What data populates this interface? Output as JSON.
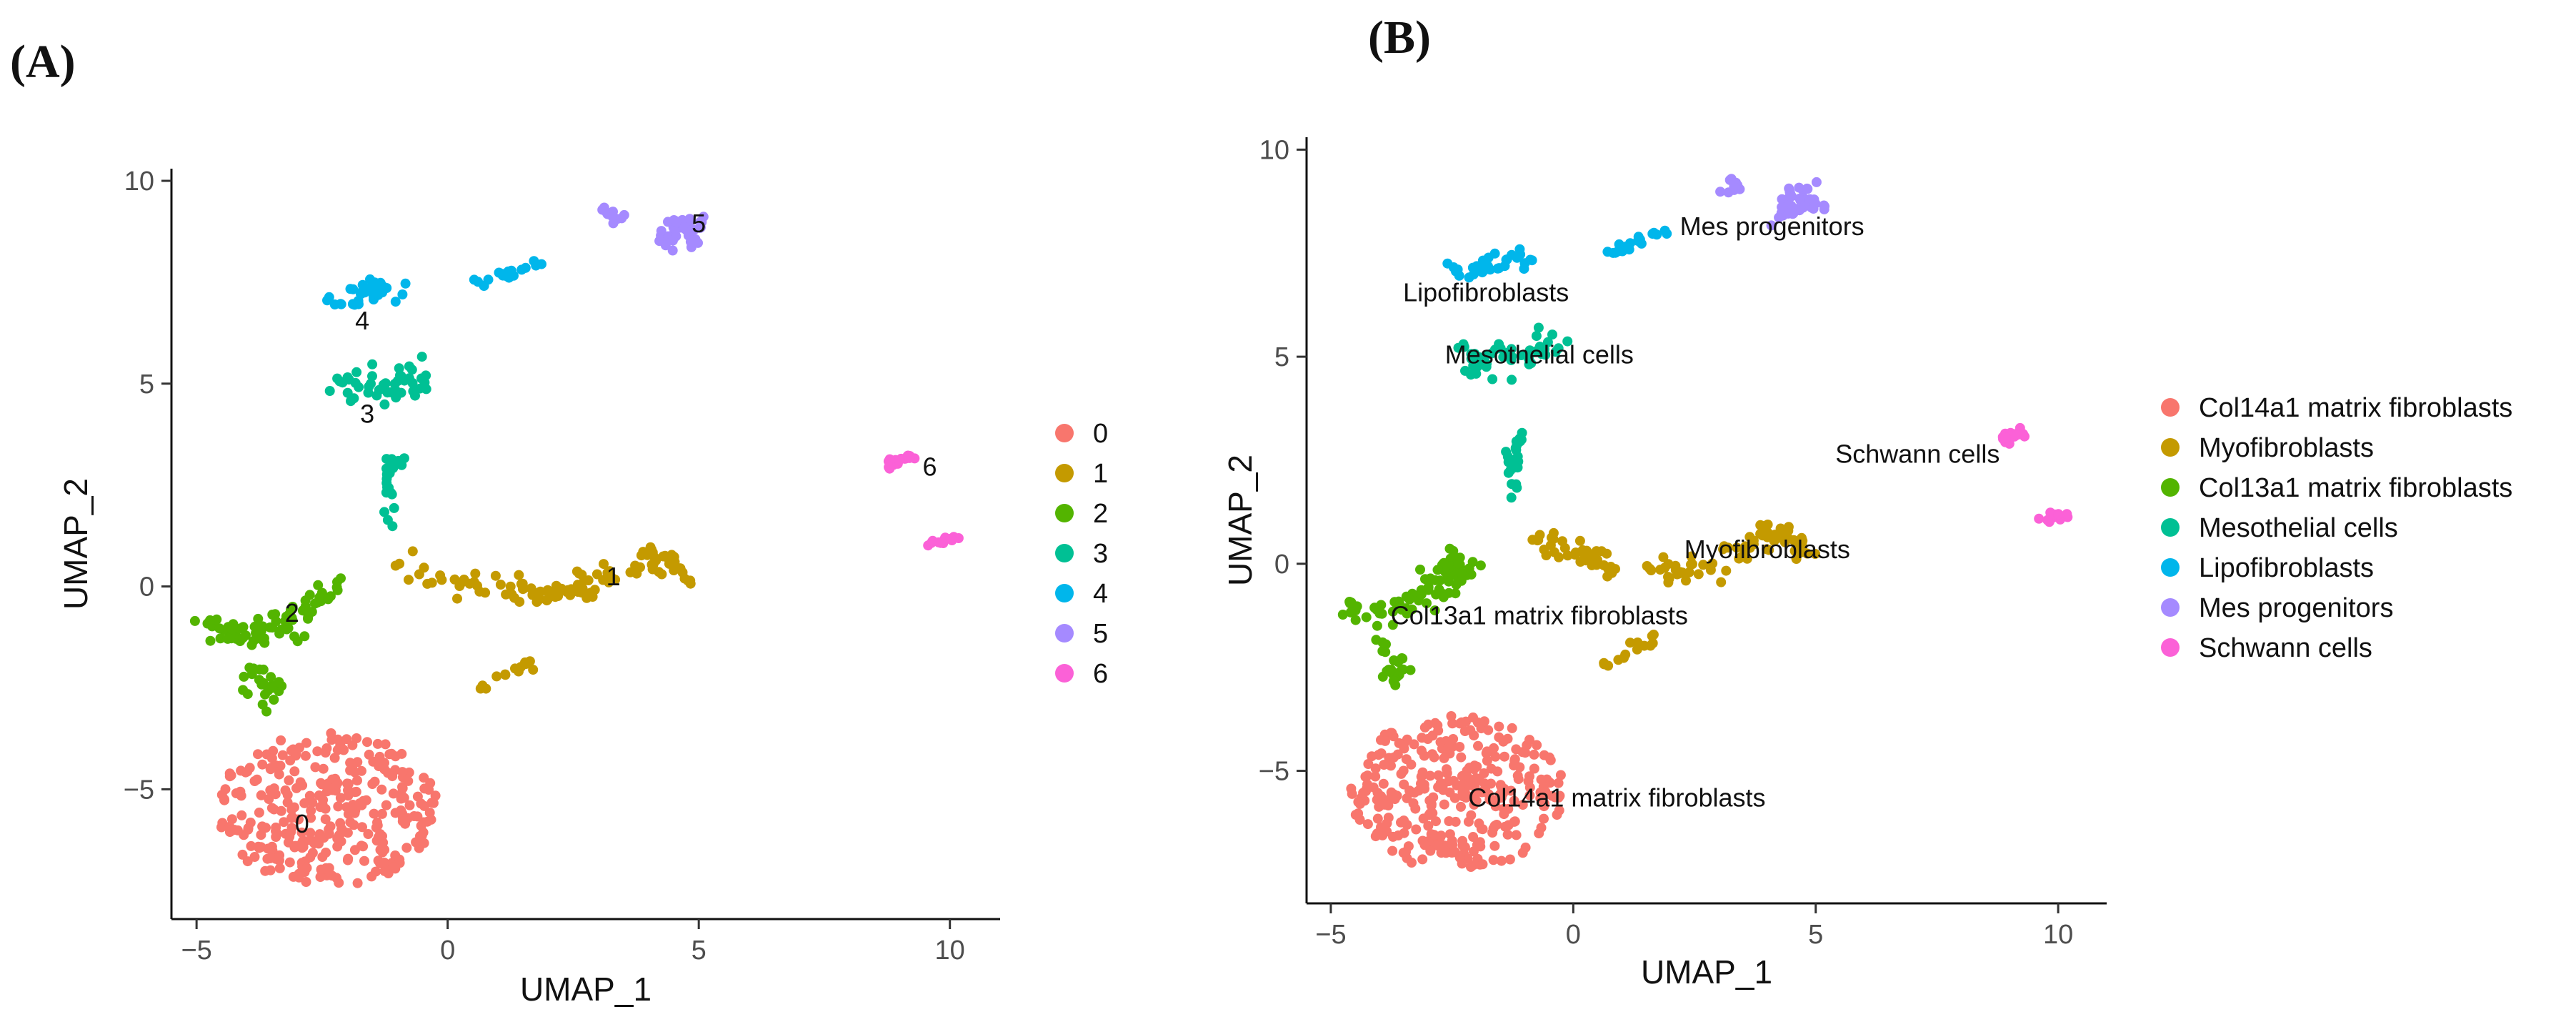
{
  "colors": {
    "0": "#F8766D",
    "1": "#C49A00",
    "2": "#53B400",
    "3": "#00C094",
    "4": "#00B6EB",
    "5": "#A58AFF",
    "6": "#FB61D7"
  },
  "chart_data": [
    {
      "type": "scatter",
      "panel_label": "(A)",
      "xlabel": "UMAP_1",
      "ylabel": "UMAP_2",
      "xlim": [
        -5.5,
        11.0
      ],
      "ylim": [
        -8.2,
        10.3
      ],
      "xticks": [
        -5,
        0,
        5,
        10
      ],
      "yticks": [
        -5,
        0,
        5,
        10
      ],
      "xtick_labels": [
        "−5",
        "0",
        "5",
        "10"
      ],
      "ytick_labels": [
        "−5",
        "0",
        "5",
        "10"
      ],
      "legend": {
        "position": "right",
        "entries": [
          {
            "key": "0",
            "label": "0"
          },
          {
            "key": "1",
            "label": "1"
          },
          {
            "key": "2",
            "label": "2"
          },
          {
            "key": "3",
            "label": "3"
          },
          {
            "key": "4",
            "label": "4"
          },
          {
            "key": "5",
            "label": "5"
          },
          {
            "key": "6",
            "label": "6"
          }
        ]
      },
      "cluster_labels": [
        {
          "text": "0",
          "x": -2.9,
          "y": -5.9
        },
        {
          "text": "1",
          "x": 3.3,
          "y": 0.2
        },
        {
          "text": "2",
          "x": -3.1,
          "y": -0.7
        },
        {
          "text": "3",
          "x": -1.6,
          "y": 4.2
        },
        {
          "text": "4",
          "x": -1.7,
          "y": 6.5
        },
        {
          "text": "5",
          "x": 5.0,
          "y": 8.9
        },
        {
          "text": "6",
          "x": 9.6,
          "y": 2.9
        }
      ],
      "series": [
        {
          "key": "0",
          "name": "0",
          "cx": -2.4,
          "cy": -5.5,
          "rx": 2.2,
          "ry": 1.9,
          "n": 330
        },
        {
          "key": "1",
          "name": "1",
          "points": [
            [
              -1.0,
              0.6
            ],
            [
              0.5,
              0.1
            ],
            [
              2.0,
              -0.2
            ],
            [
              3.0,
              0.0
            ],
            [
              4.0,
              0.8
            ],
            [
              4.8,
              0.3
            ]
          ],
          "n": 115,
          "spread": 0.28
        },
        {
          "key": "1",
          "name": "1",
          "points": [
            [
              0.5,
              -2.6
            ],
            [
              1.4,
              -2.0
            ],
            [
              1.7,
              -1.8
            ]
          ],
          "n": 14,
          "spread": 0.12
        },
        {
          "key": "2",
          "name": "2",
          "points": [
            [
              -4.9,
              -1.0
            ],
            [
              -4.0,
              -1.2
            ],
            [
              -3.2,
              -0.9
            ],
            [
              -2.6,
              -0.4
            ],
            [
              -2.3,
              0.1
            ]
          ],
          "n": 75,
          "spread": 0.32
        },
        {
          "key": "2",
          "name": "2",
          "points": [
            [
              -3.9,
              -2.0
            ],
            [
              -3.4,
              -2.5
            ],
            [
              -3.8,
              -2.8
            ]
          ],
          "n": 22,
          "spread": 0.25
        },
        {
          "key": "3",
          "name": "3",
          "points": [
            [
              -1.3,
              1.4
            ],
            [
              -1.2,
              2.5
            ],
            [
              -1.1,
              3.3
            ]
          ],
          "n": 26,
          "spread": 0.15
        },
        {
          "key": "3",
          "name": "3",
          "points": [
            [
              -2.3,
              4.9
            ],
            [
              -1.6,
              5.0
            ],
            [
              -0.9,
              5.0
            ],
            [
              -0.3,
              5.2
            ]
          ],
          "n": 48,
          "spread": 0.35
        },
        {
          "key": "4",
          "name": "4",
          "points": [
            [
              -2.3,
              7.0
            ],
            [
              -1.6,
              7.2
            ],
            [
              -1.0,
              7.5
            ]
          ],
          "n": 32,
          "spread": 0.25
        },
        {
          "key": "4",
          "name": "4",
          "points": [
            [
              0.7,
              7.5
            ],
            [
              1.3,
              7.8
            ],
            [
              1.9,
              8.0
            ]
          ],
          "n": 18,
          "spread": 0.12
        },
        {
          "key": "5",
          "name": "5",
          "points": [
            [
              3.2,
              9.2
            ],
            [
              3.5,
              9.0
            ]
          ],
          "n": 10,
          "spread": 0.15
        },
        {
          "key": "5",
          "name": "5",
          "points": [
            [
              4.2,
              8.4
            ],
            [
              4.7,
              9.0
            ],
            [
              5.0,
              8.6
            ]
          ],
          "n": 38,
          "spread": 0.25
        },
        {
          "key": "6",
          "name": "6",
          "points": [
            [
              8.7,
              3.0
            ],
            [
              9.3,
              3.2
            ]
          ],
          "n": 18,
          "spread": 0.15
        },
        {
          "key": "6",
          "name": "6",
          "points": [
            [
              9.7,
              1.1
            ],
            [
              10.1,
              1.2
            ]
          ],
          "n": 14,
          "spread": 0.15
        }
      ]
    },
    {
      "type": "scatter",
      "panel_label": "(B)",
      "xlabel": "UMAP_1",
      "ylabel": "UMAP_2",
      "xlim": [
        -5.5,
        11.0
      ],
      "ylim": [
        -8.2,
        10.3
      ],
      "xticks": [
        -5,
        0,
        5,
        10
      ],
      "yticks": [
        -5,
        0,
        5,
        10
      ],
      "xtick_labels": [
        "−5",
        "0",
        "5",
        "10"
      ],
      "ytick_labels": [
        "−5",
        "0",
        "5",
        "10"
      ],
      "legend": {
        "position": "right",
        "entries": [
          {
            "key": "0",
            "label": "Col14a1 matrix fibroblasts"
          },
          {
            "key": "1",
            "label": "Myofibroblasts"
          },
          {
            "key": "2",
            "label": "Col13a1 matrix fibroblasts"
          },
          {
            "key": "3",
            "label": "Mesothelial cells"
          },
          {
            "key": "4",
            "label": "Lipofibroblasts"
          },
          {
            "key": "5",
            "label": "Mes progenitors"
          },
          {
            "key": "6",
            "label": "Schwann cells"
          }
        ]
      },
      "cluster_labels": [
        {
          "text": "Col14a1 matrix fibroblasts",
          "x": 0.9,
          "y": -5.7
        },
        {
          "text": "Myofibroblasts",
          "x": 4.0,
          "y": 0.3
        },
        {
          "text": "Col13a1 matrix fibroblasts",
          "x": -0.7,
          "y": -1.3
        },
        {
          "text": "Mesothelial cells",
          "x": -0.7,
          "y": 5.0
        },
        {
          "text": "Lipofibroblasts",
          "x": -1.8,
          "y": 6.5
        },
        {
          "text": "Mes progenitors",
          "x": 4.1,
          "y": 8.1
        },
        {
          "text": "Schwann cells",
          "x": 7.1,
          "y": 2.6
        }
      ],
      "series": [
        {
          "key": "0",
          "name": "Col14a1 matrix fibroblasts",
          "cx": -2.4,
          "cy": -5.5,
          "rx": 2.2,
          "ry": 1.9,
          "n": 330
        },
        {
          "key": "1",
          "name": "Myofibroblasts",
          "points": [
            [
              -1.0,
              0.6
            ],
            [
              0.5,
              0.1
            ],
            [
              2.0,
              -0.2
            ],
            [
              3.0,
              0.0
            ],
            [
              4.0,
              0.8
            ],
            [
              4.8,
              0.3
            ]
          ],
          "n": 115,
          "spread": 0.28
        },
        {
          "key": "1",
          "name": "Myofibroblasts",
          "points": [
            [
              0.5,
              -2.6
            ],
            [
              1.4,
              -2.0
            ],
            [
              1.7,
              -1.8
            ]
          ],
          "n": 14,
          "spread": 0.12
        },
        {
          "key": "2",
          "name": "Col13a1 matrix fibroblasts",
          "points": [
            [
              -4.9,
              -1.0
            ],
            [
              -4.0,
              -1.2
            ],
            [
              -3.2,
              -0.9
            ],
            [
              -2.6,
              -0.4
            ],
            [
              -2.3,
              0.1
            ]
          ],
          "n": 75,
          "spread": 0.32
        },
        {
          "key": "2",
          "name": "Col13a1 matrix fibroblasts",
          "points": [
            [
              -3.9,
              -2.0
            ],
            [
              -3.4,
              -2.5
            ],
            [
              -3.8,
              -2.8
            ]
          ],
          "n": 22,
          "spread": 0.25
        },
        {
          "key": "3",
          "name": "Mesothelial cells",
          "points": [
            [
              -1.3,
              1.4
            ],
            [
              -1.2,
              2.5
            ],
            [
              -1.1,
              3.3
            ]
          ],
          "n": 26,
          "spread": 0.15
        },
        {
          "key": "3",
          "name": "Mesothelial cells",
          "points": [
            [
              -2.3,
              4.9
            ],
            [
              -1.6,
              5.0
            ],
            [
              -0.9,
              5.0
            ],
            [
              -0.3,
              5.2
            ]
          ],
          "n": 48,
          "spread": 0.35
        },
        {
          "key": "4",
          "name": "Lipofibroblasts",
          "points": [
            [
              -2.3,
              7.0
            ],
            [
              -1.6,
              7.2
            ],
            [
              -1.0,
              7.5
            ]
          ],
          "n": 32,
          "spread": 0.25
        },
        {
          "key": "4",
          "name": "Lipofibroblasts",
          "points": [
            [
              0.7,
              7.5
            ],
            [
              1.3,
              7.8
            ],
            [
              1.9,
              8.0
            ]
          ],
          "n": 18,
          "spread": 0.12
        },
        {
          "key": "5",
          "name": "Mes progenitors",
          "points": [
            [
              3.2,
              9.2
            ],
            [
              3.5,
              9.0
            ]
          ],
          "n": 10,
          "spread": 0.15
        },
        {
          "key": "5",
          "name": "Mes progenitors",
          "points": [
            [
              4.2,
              8.4
            ],
            [
              4.7,
              9.0
            ],
            [
              5.0,
              8.6
            ]
          ],
          "n": 38,
          "spread": 0.25
        },
        {
          "key": "6",
          "name": "Schwann cells",
          "points": [
            [
              8.7,
              3.0
            ],
            [
              9.3,
              3.2
            ]
          ],
          "n": 18,
          "spread": 0.15
        },
        {
          "key": "6",
          "name": "Schwann cells",
          "points": [
            [
              9.7,
              1.1
            ],
            [
              10.1,
              1.2
            ]
          ],
          "n": 14,
          "spread": 0.15
        }
      ]
    }
  ]
}
